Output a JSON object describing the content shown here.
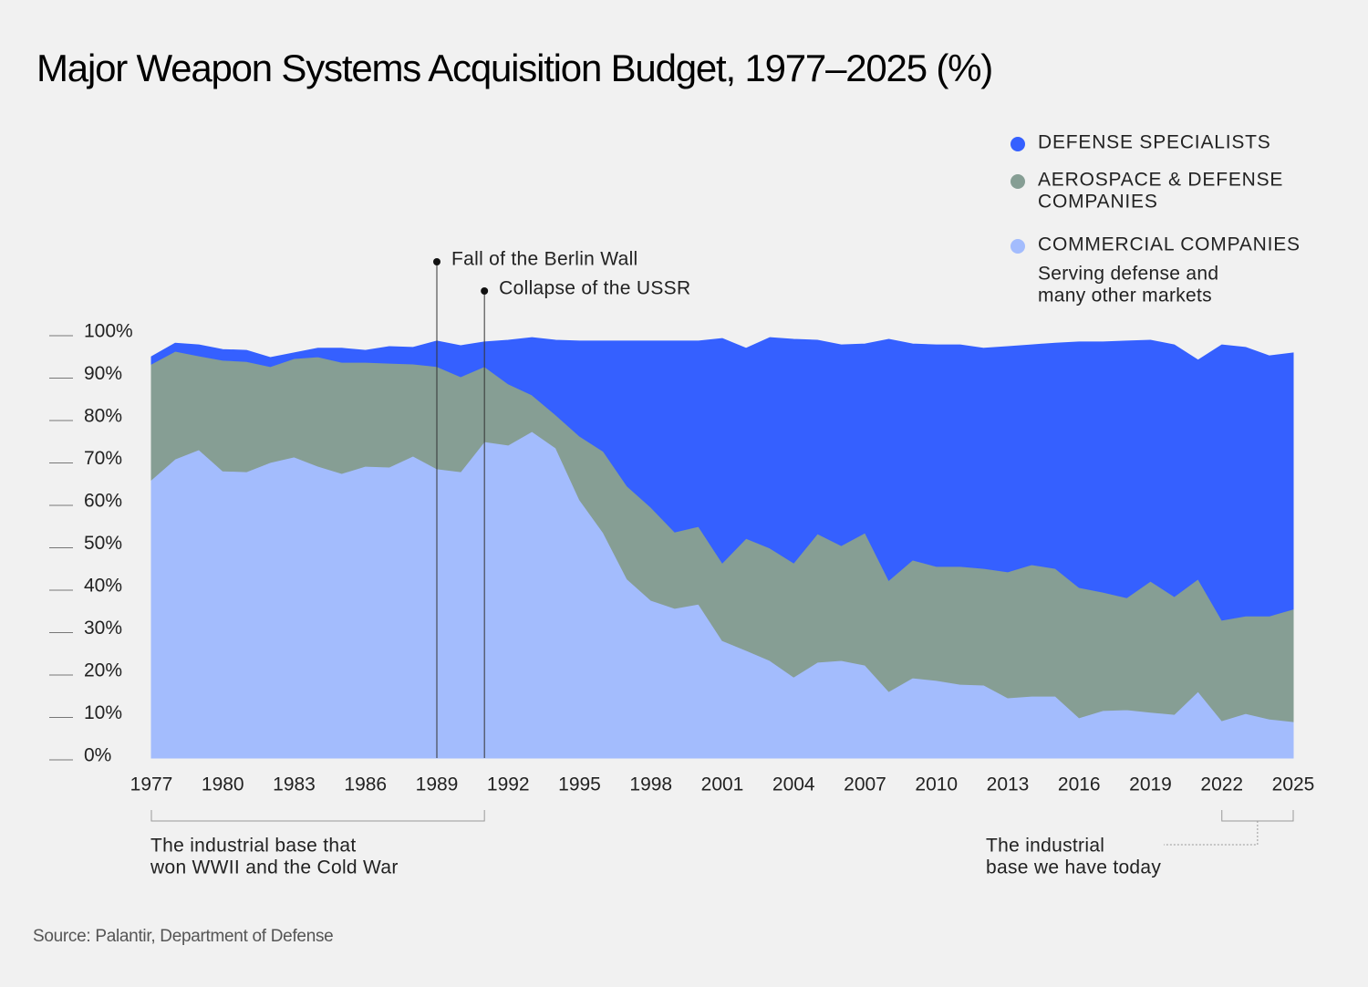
{
  "chart_data": {
    "type": "stacked_area",
    "title": "Major Weapon Systems Acquisition Budget, 1977–2025 (%)",
    "source": "Source: Palantir, Department of Defense",
    "x": [
      1977,
      1978,
      1979,
      1980,
      1981,
      1982,
      1983,
      1984,
      1985,
      1986,
      1987,
      1988,
      1989,
      1990,
      1991,
      1992,
      1993,
      1994,
      1995,
      1996,
      1997,
      1998,
      1999,
      2000,
      2001,
      2002,
      2003,
      2004,
      2005,
      2006,
      2007,
      2008,
      2009,
      2010,
      2011,
      2012,
      2013,
      2014,
      2015,
      2016,
      2017,
      2018,
      2019,
      2020,
      2021,
      2022,
      2023,
      2024,
      2025
    ],
    "xlim": [
      1977,
      2025
    ],
    "xticks": [
      1977,
      1980,
      1983,
      1986,
      1989,
      1992,
      1995,
      1998,
      2001,
      2004,
      2007,
      2010,
      2013,
      2016,
      2019,
      2022,
      2025
    ],
    "ylim": [
      0,
      100
    ],
    "yticks": [
      {
        "value": 0,
        "label": "0%"
      },
      {
        "value": 10,
        "label": "10%"
      },
      {
        "value": 20,
        "label": "20%"
      },
      {
        "value": 30,
        "label": "30%"
      },
      {
        "value": 40,
        "label": "40%"
      },
      {
        "value": 50,
        "label": "50%"
      },
      {
        "value": 60,
        "label": "60%"
      },
      {
        "value": 70,
        "label": "70%"
      },
      {
        "value": 80,
        "label": "80%"
      },
      {
        "value": 90,
        "label": "90%"
      },
      {
        "value": 100,
        "label": "100%"
      }
    ],
    "legend": "top-right",
    "series": [
      {
        "name": "COMMERCIAL COMPANIES",
        "description": [
          "Serving defense and",
          "many other markets"
        ],
        "color": "#a3bcfd",
        "values": [
          65.6,
          70.5,
          72.7,
          67.7,
          67.5,
          69.7,
          71.0,
          68.8,
          67.1,
          68.8,
          68.6,
          71.2,
          68.2,
          67.5,
          74.6,
          73.8,
          77.0,
          73.1,
          60.9,
          53.1,
          42.2,
          37.2,
          35.3,
          36.3,
          27.7,
          25.4,
          23.0,
          19.1,
          22.6,
          23.0,
          21.9,
          15.7,
          18.9,
          18.3,
          17.4,
          17.2,
          14.2,
          14.6,
          14.6,
          9.5,
          11.2,
          11.4,
          10.8,
          10.3,
          15.7,
          8.8,
          10.5,
          9.2,
          8.6
        ]
      },
      {
        "name": [
          "AEROSPACE & DEFENSE",
          "COMPANIES"
        ],
        "color": "#869e94",
        "values": [
          27.3,
          25.4,
          22.1,
          26.1,
          26.0,
          22.6,
          23.2,
          25.8,
          26.2,
          24.5,
          24.5,
          21.7,
          24.1,
          22.4,
          17.7,
          14.4,
          8.6,
          7.8,
          15.0,
          19.2,
          21.9,
          21.9,
          18.0,
          18.3,
          18.3,
          26.4,
          26.5,
          26.9,
          30.3,
          27.1,
          31.2,
          26.2,
          27.8,
          26.9,
          27.8,
          27.5,
          29.7,
          31.0,
          30.1,
          30.7,
          27.9,
          26.4,
          30.9,
          27.8,
          26.5,
          23.7,
          23.0,
          24.3,
          26.5
        ]
      },
      {
        "name": "DEFENSE SPECIALISTS",
        "color": "#3560ff",
        "values": [
          1.7,
          1.9,
          2.6,
          2.5,
          2.6,
          2.1,
          1.3,
          2.0,
          3.3,
          2.8,
          3.9,
          3.9,
          6.0,
          7.3,
          5.8,
          10.3,
          13.5,
          17.6,
          22.4,
          26.0,
          34.2,
          39.2,
          45.0,
          43.7,
          52.9,
          44.8,
          49.6,
          52.7,
          45.6,
          47.3,
          44.5,
          56.8,
          50.9,
          52.2,
          52.2,
          51.9,
          53.1,
          51.8,
          53.1,
          57.9,
          59.0,
          60.5,
          56.8,
          59.3,
          51.6,
          64.9,
          63.3,
          61.3,
          60.4
        ]
      }
    ],
    "annotations": [
      {
        "text": "Fall of the Berlin Wall",
        "x": 1989
      },
      {
        "text": "Collapse of the USSR",
        "x": 1991
      }
    ],
    "brackets": [
      {
        "text": [
          "The industrial base that",
          "won WWII and the Cold War"
        ],
        "x": [
          1977,
          1991
        ]
      },
      {
        "text": [
          "The industrial",
          "base we have today"
        ],
        "x": [
          2022,
          2025
        ]
      }
    ]
  }
}
